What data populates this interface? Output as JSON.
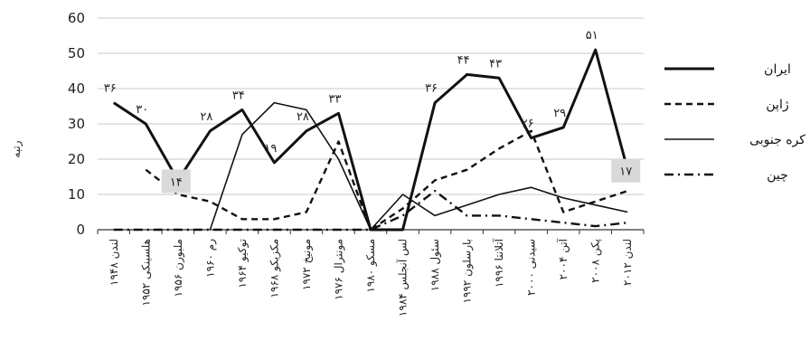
{
  "chart_data": {
    "type": "line",
    "title": "",
    "xlabel": "",
    "ylabel": "رتبه",
    "ylim": [
      0,
      60
    ],
    "yticks": [
      "0",
      "10",
      "20",
      "30",
      "40",
      "50",
      "60"
    ],
    "categories": [
      "لندن ۱۹۴۸",
      "هلسینکی ۱۹۵۲",
      "ملبورن ۱۹۵۶",
      "رم ۱۹۶۰",
      "توکیو ۱۹۶۴",
      "مکزیکو ۱۹۶۸",
      "مونیخ ۱۹۷۲",
      "مونترال ۱۹۷۶",
      "مسکو ۱۹۸۰",
      "لس آنجلس ۱۹۸۴",
      "سئول ۱۹۸۸",
      "بارسلون ۱۹۹۲",
      "آتلانتا ۱۹۹۶",
      "سیدنی ۲۰۰۰",
      "آتن ۲۰۰۴",
      "پکن ۲۰۰۸",
      "لندن ۲۰۱۲"
    ],
    "legend_position": "right",
    "grid": "horizontal",
    "series": [
      {
        "name": "ایران",
        "style": "solid-thick",
        "color": "#111111",
        "values": [
          36,
          30,
          14,
          28,
          34,
          19,
          28,
          33,
          0,
          0,
          36,
          44,
          43,
          26,
          29,
          51,
          17
        ]
      },
      {
        "name": "ژاپن",
        "style": "dashed",
        "color": "#111111",
        "values": [
          null,
          17,
          10,
          8,
          3,
          3,
          5,
          25,
          0,
          6,
          14,
          17,
          23,
          28,
          5,
          8,
          11
        ]
      },
      {
        "name": "کره جنوبی",
        "style": "solid-thin",
        "color": "#111111",
        "values": [
          null,
          null,
          null,
          0,
          27,
          36,
          34,
          20,
          0,
          10,
          4,
          7,
          10,
          12,
          9,
          7,
          5
        ]
      },
      {
        "name": "چین",
        "style": "dashdot",
        "color": "#111111",
        "values": [
          0,
          0,
          0,
          0,
          0,
          0,
          0,
          0,
          0,
          4,
          11,
          4,
          4,
          3,
          2,
          1,
          2
        ]
      }
    ],
    "data_labels": [
      {
        "series": 0,
        "index": 0,
        "text": "۳۶"
      },
      {
        "series": 0,
        "index": 1,
        "text": "۳۰"
      },
      {
        "series": 0,
        "index": 2,
        "text": "۱۴",
        "boxed": true
      },
      {
        "series": 0,
        "index": 3,
        "text": "۲۸"
      },
      {
        "series": 0,
        "index": 4,
        "text": "۳۴"
      },
      {
        "series": 0,
        "index": 5,
        "text": "۱۹"
      },
      {
        "series": 0,
        "index": 6,
        "text": "۲۸"
      },
      {
        "series": 0,
        "index": 7,
        "text": "۳۳"
      },
      {
        "series": 0,
        "index": 10,
        "text": "۳۶"
      },
      {
        "series": 0,
        "index": 11,
        "text": "۴۴"
      },
      {
        "series": 0,
        "index": 12,
        "text": "۴۳"
      },
      {
        "series": 0,
        "index": 13,
        "text": "۲۶"
      },
      {
        "series": 0,
        "index": 14,
        "text": "۲۹"
      },
      {
        "series": 0,
        "index": 15,
        "text": "۵۱"
      },
      {
        "series": 0,
        "index": 16,
        "text": "۱۷",
        "boxed": true
      }
    ]
  }
}
